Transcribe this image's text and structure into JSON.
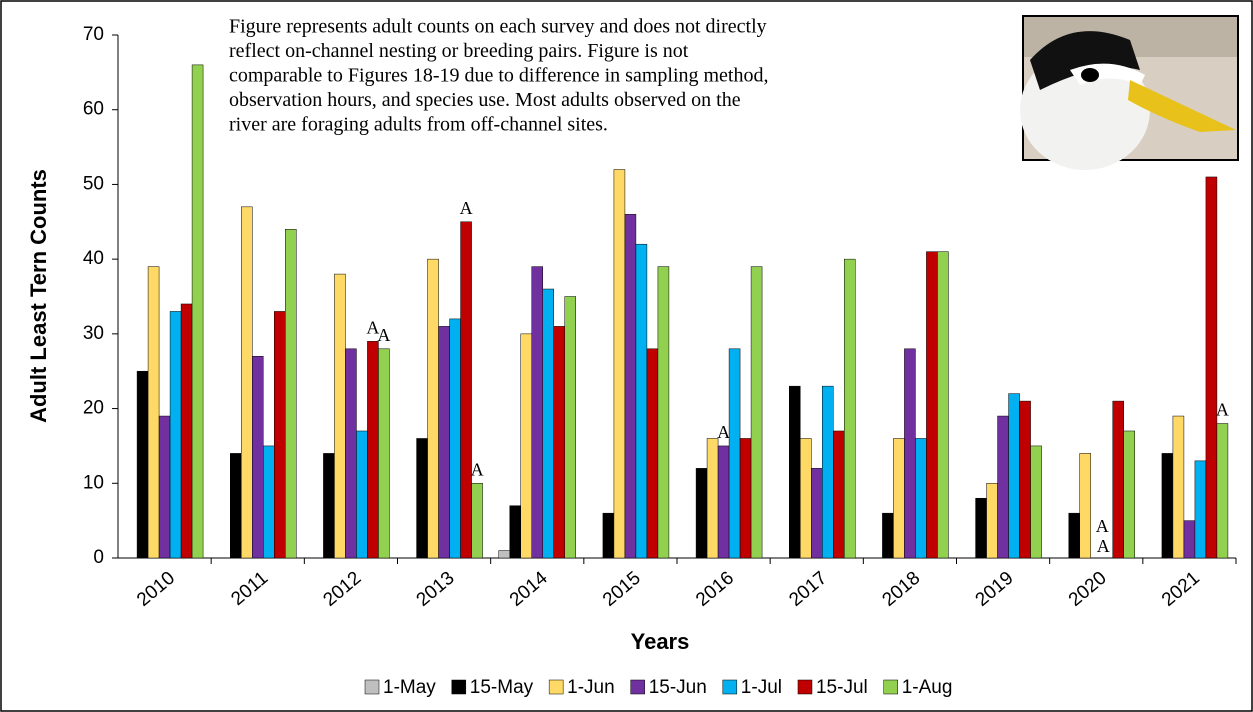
{
  "chart_data": {
    "type": "bar",
    "annotation_lines": [
      "Figure represents adult counts on each survey and does not directly",
      "reflect on-channel nesting or breeding pairs. Figure is not",
      "comparable to Figures 18-19 due to difference in sampling method,",
      "observation hours, and species use. Most adults observed on the",
      "river are foraging adults from off-channel sites."
    ],
    "x_label": "Years",
    "y_label": "Adult Least Tern Counts",
    "categories": [
      "2010",
      "2011",
      "2012",
      "2013",
      "2014",
      "2015",
      "2016",
      "2017",
      "2018",
      "2019",
      "2020",
      "2021"
    ],
    "series": [
      {
        "name": "1-May",
        "color": "#bfbfbf",
        "values": [
          null,
          null,
          null,
          null,
          1,
          null,
          null,
          null,
          null,
          null,
          null,
          null
        ],
        "notes": [
          null,
          null,
          null,
          null,
          null,
          null,
          null,
          null,
          null,
          null,
          null,
          null
        ]
      },
      {
        "name": "15-May",
        "color": "#000000",
        "values": [
          25,
          14,
          14,
          16,
          7,
          6,
          12,
          23,
          6,
          8,
          6,
          14
        ],
        "notes": [
          null,
          null,
          null,
          null,
          null,
          null,
          null,
          null,
          null,
          null,
          null,
          null
        ]
      },
      {
        "name": "1-Jun",
        "color": "#ffd966",
        "values": [
          39,
          47,
          38,
          40,
          30,
          52,
          16,
          16,
          16,
          10,
          14,
          19
        ],
        "notes": [
          null,
          null,
          null,
          null,
          null,
          null,
          null,
          null,
          null,
          null,
          null,
          null
        ]
      },
      {
        "name": "15-Jun",
        "color": "#7030a0",
        "values": [
          19,
          27,
          28,
          31,
          39,
          46,
          15,
          12,
          28,
          19,
          0,
          5
        ],
        "notes": [
          null,
          null,
          null,
          null,
          null,
          null,
          "A",
          null,
          null,
          null,
          "A",
          null
        ]
      },
      {
        "name": "1-Jul",
        "color": "#00b0f0",
        "values": [
          33,
          15,
          17,
          32,
          36,
          42,
          28,
          23,
          16,
          22,
          0,
          13
        ],
        "notes": [
          null,
          null,
          null,
          null,
          null,
          null,
          null,
          null,
          null,
          null,
          "A",
          null
        ]
      },
      {
        "name": "15-Jul",
        "color": "#c00000",
        "values": [
          34,
          33,
          29,
          45,
          31,
          28,
          16,
          17,
          41,
          21,
          21,
          51
        ],
        "notes": [
          null,
          null,
          "A",
          "A",
          null,
          null,
          null,
          null,
          null,
          null,
          null,
          null
        ]
      },
      {
        "name": "1-Aug",
        "color": "#92d050",
        "values": [
          66,
          44,
          28,
          10,
          35,
          39,
          39,
          40,
          41,
          15,
          17,
          18
        ],
        "notes": [
          null,
          null,
          "A",
          "A",
          null,
          null,
          null,
          null,
          null,
          null,
          null,
          "A"
        ]
      }
    ],
    "ylim": [
      0,
      70
    ],
    "yticks": [
      0,
      10,
      20,
      30,
      40,
      50,
      60,
      70
    ],
    "grid": false,
    "legend": "bottom"
  }
}
